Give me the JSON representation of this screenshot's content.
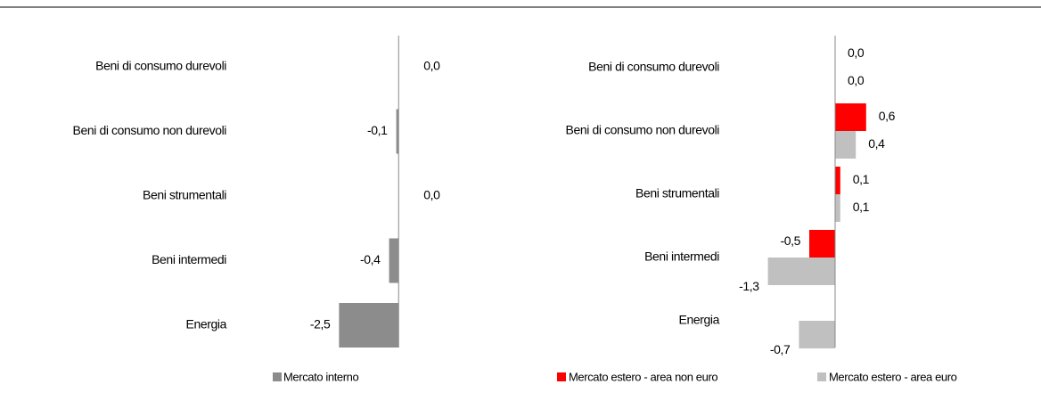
{
  "chart_data": [
    {
      "type": "barh",
      "categories": [
        "Beni di consumo durevoli",
        "Beni di consumo non durevoli",
        "Beni strumentali",
        "Beni intermedi",
        "Energia"
      ],
      "xlim": [
        -3,
        1
      ],
      "series": [
        {
          "name": "Mercato interno",
          "color": "#8c8c8c",
          "values": [
            0.0,
            -0.1,
            0.0,
            -0.4,
            -2.5
          ],
          "value_labels": [
            "0,0",
            "-0,1",
            "0,0",
            "-0,4",
            "-2,5"
          ]
        }
      ]
    },
    {
      "type": "barh",
      "categories": [
        "Beni di consumo durevoli",
        "Beni di consumo non durevoli",
        "Beni strumentali",
        "Beni intermedi",
        "Energia"
      ],
      "xlim": [
        -1.5,
        1
      ],
      "series": [
        {
          "name": "Mercato estero - area non euro",
          "color": "#ff0000",
          "values": [
            0.0,
            0.6,
            0.1,
            -0.5,
            0.0
          ],
          "value_labels": [
            "0,0",
            "0,6",
            "0,1",
            "-0,5",
            null
          ]
        },
        {
          "name": "Mercato estero - area euro",
          "color": "#c0c0c0",
          "values": [
            0.0,
            0.4,
            0.1,
            -1.3,
            -0.7
          ],
          "value_labels": [
            "0,0",
            "0,4",
            "0,1",
            "-1,3",
            "-0,7"
          ]
        }
      ]
    }
  ]
}
